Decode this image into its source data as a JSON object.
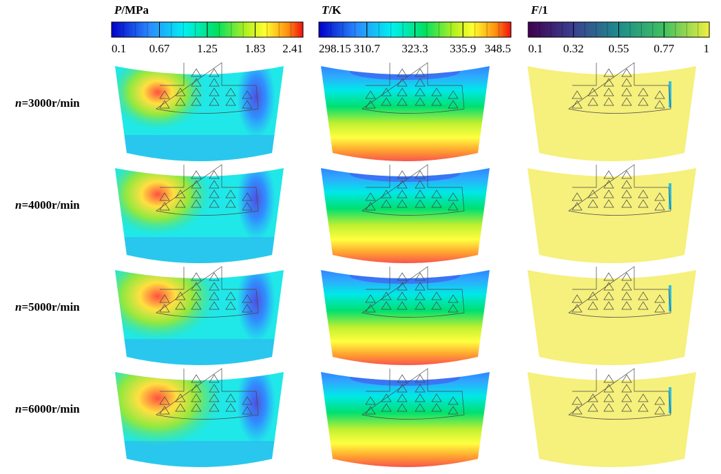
{
  "colorbars": [
    {
      "symbol": "P",
      "unit": "/MPa",
      "ticks": [
        0.1,
        0.67,
        1.25,
        1.83,
        2.41
      ]
    },
    {
      "symbol": "T",
      "unit": "/K",
      "ticks": [
        298.15,
        310.7,
        323.3,
        335.9,
        348.5
      ]
    },
    {
      "symbol": "F",
      "unit": "/1",
      "ticks": [
        0.1,
        0.32,
        0.55,
        0.77,
        1
      ]
    }
  ],
  "rows": [
    {
      "symbol": "n",
      "text": "=3000r/min"
    },
    {
      "symbol": "n",
      "text": "=4000r/min"
    },
    {
      "symbol": "n",
      "text": "=5000r/min"
    },
    {
      "symbol": "n",
      "text": "=6000r/min"
    }
  ]
}
